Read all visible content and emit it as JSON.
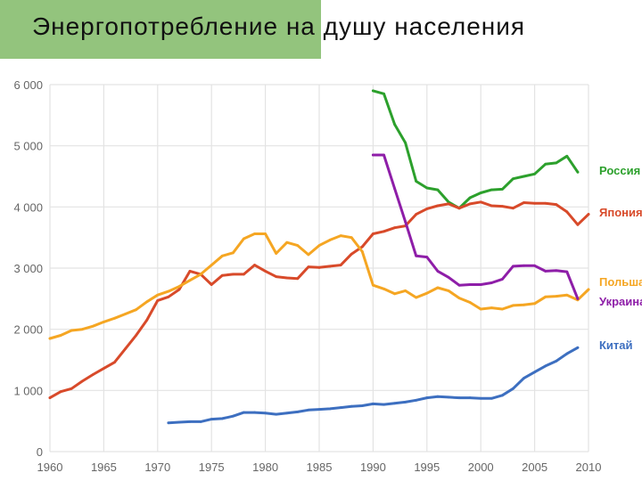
{
  "title": "Энергопотребление на душу населения",
  "chart_data": {
    "type": "line",
    "title": "Энергопотребление на душу населения",
    "xlabel": "",
    "ylabel": "",
    "xlim": [
      1960,
      2010
    ],
    "ylim": [
      0,
      6000
    ],
    "grid": true,
    "legend_position": "right",
    "x_ticks": [
      1960,
      1965,
      1970,
      1975,
      1980,
      1985,
      1990,
      1995,
      2000,
      2005,
      2010
    ],
    "x_tick_labels": [
      "1960",
      "1965",
      "1970",
      "1975",
      "1980",
      "1985",
      "1990",
      "1995",
      "2000",
      "2005",
      "2010"
    ],
    "y_ticks": [
      0,
      1000,
      2000,
      3000,
      4000,
      5000,
      6000
    ],
    "y_tick_labels": [
      "0",
      "1 000",
      "2 000",
      "3 000",
      "4 000",
      "5 000",
      "6 000"
    ],
    "series": [
      {
        "name": "Россия",
        "color": "#2ca02c",
        "x": [
          1990,
          1991,
          1992,
          1993,
          1994,
          1995,
          1996,
          1997,
          1998,
          1999,
          2000,
          2001,
          2002,
          2003,
          2004,
          2005,
          2006,
          2007,
          2008,
          2009
        ],
        "y": [
          5900,
          5850,
          5350,
          5050,
          4420,
          4310,
          4280,
          4080,
          3980,
          4150,
          4230,
          4280,
          4290,
          4460,
          4500,
          4540,
          4700,
          4720,
          4830,
          4570
        ]
      },
      {
        "name": "Япония",
        "color": "#d84a2a",
        "x": [
          1960,
          1961,
          1962,
          1963,
          1964,
          1965,
          1966,
          1967,
          1968,
          1969,
          1970,
          1971,
          1972,
          1973,
          1974,
          1975,
          1976,
          1977,
          1978,
          1979,
          1980,
          1981,
          1982,
          1983,
          1984,
          1985,
          1986,
          1987,
          1988,
          1989,
          1990,
          1991,
          1992,
          1993,
          1994,
          1995,
          1996,
          1997,
          1998,
          1999,
          2000,
          2001,
          2002,
          2003,
          2004,
          2005,
          2006,
          2007,
          2008,
          2009,
          2010
        ],
        "y": [
          880,
          980,
          1030,
          1150,
          1260,
          1360,
          1460,
          1680,
          1900,
          2150,
          2470,
          2530,
          2650,
          2950,
          2900,
          2730,
          2880,
          2900,
          2900,
          3050,
          2950,
          2860,
          2840,
          2830,
          3020,
          3010,
          3030,
          3050,
          3230,
          3350,
          3560,
          3600,
          3660,
          3690,
          3880,
          3970,
          4020,
          4050,
          3980,
          4050,
          4080,
          4020,
          4010,
          3980,
          4070,
          4060,
          4060,
          4040,
          3920,
          3710,
          3880
        ]
      },
      {
        "name": "Польша",
        "color": "#f5a623",
        "x": [
          1960,
          1961,
          1962,
          1963,
          1964,
          1965,
          1966,
          1967,
          1968,
          1969,
          1970,
          1971,
          1972,
          1973,
          1974,
          1975,
          1976,
          1977,
          1978,
          1979,
          1980,
          1981,
          1982,
          1983,
          1984,
          1985,
          1986,
          1987,
          1988,
          1989,
          1990,
          1991,
          1992,
          1993,
          1994,
          1995,
          1996,
          1997,
          1998,
          1999,
          2000,
          2001,
          2002,
          2003,
          2004,
          2005,
          2006,
          2007,
          2008,
          2009,
          2010
        ],
        "y": [
          1850,
          1900,
          1980,
          2000,
          2050,
          2120,
          2180,
          2250,
          2320,
          2450,
          2560,
          2620,
          2700,
          2800,
          2900,
          3050,
          3200,
          3250,
          3480,
          3560,
          3560,
          3240,
          3420,
          3370,
          3220,
          3370,
          3460,
          3530,
          3500,
          3270,
          2720,
          2660,
          2580,
          2630,
          2520,
          2590,
          2680,
          2630,
          2510,
          2440,
          2330,
          2350,
          2330,
          2390,
          2400,
          2420,
          2530,
          2540,
          2560,
          2480,
          2650
        ]
      },
      {
        "name": "Украина",
        "color": "#8e1ea8",
        "x": [
          1990,
          1991,
          1992,
          1993,
          1994,
          1995,
          1996,
          1997,
          1998,
          1999,
          2000,
          2001,
          2002,
          2003,
          2004,
          2005,
          2006,
          2007,
          2008,
          2009
        ],
        "y": [
          4850,
          4850,
          4300,
          3760,
          3200,
          3180,
          2950,
          2850,
          2720,
          2730,
          2730,
          2760,
          2820,
          3030,
          3040,
          3040,
          2950,
          2960,
          2940,
          2500
        ]
      },
      {
        "name": "Китай",
        "color": "#3d6fc0",
        "x": [
          1971,
          1972,
          1973,
          1974,
          1975,
          1976,
          1977,
          1978,
          1979,
          1980,
          1981,
          1982,
          1983,
          1984,
          1985,
          1986,
          1987,
          1988,
          1989,
          1990,
          1991,
          1992,
          1993,
          1994,
          1995,
          1996,
          1997,
          1998,
          1999,
          2000,
          2001,
          2002,
          2003,
          2004,
          2005,
          2006,
          2007,
          2008,
          2009
        ],
        "y": [
          470,
          480,
          490,
          490,
          530,
          540,
          580,
          640,
          640,
          630,
          610,
          630,
          650,
          680,
          690,
          700,
          720,
          740,
          750,
          780,
          770,
          790,
          810,
          840,
          880,
          900,
          890,
          880,
          880,
          870,
          870,
          920,
          1030,
          1200,
          1300,
          1400,
          1480,
          1600,
          1700
        ]
      }
    ]
  }
}
